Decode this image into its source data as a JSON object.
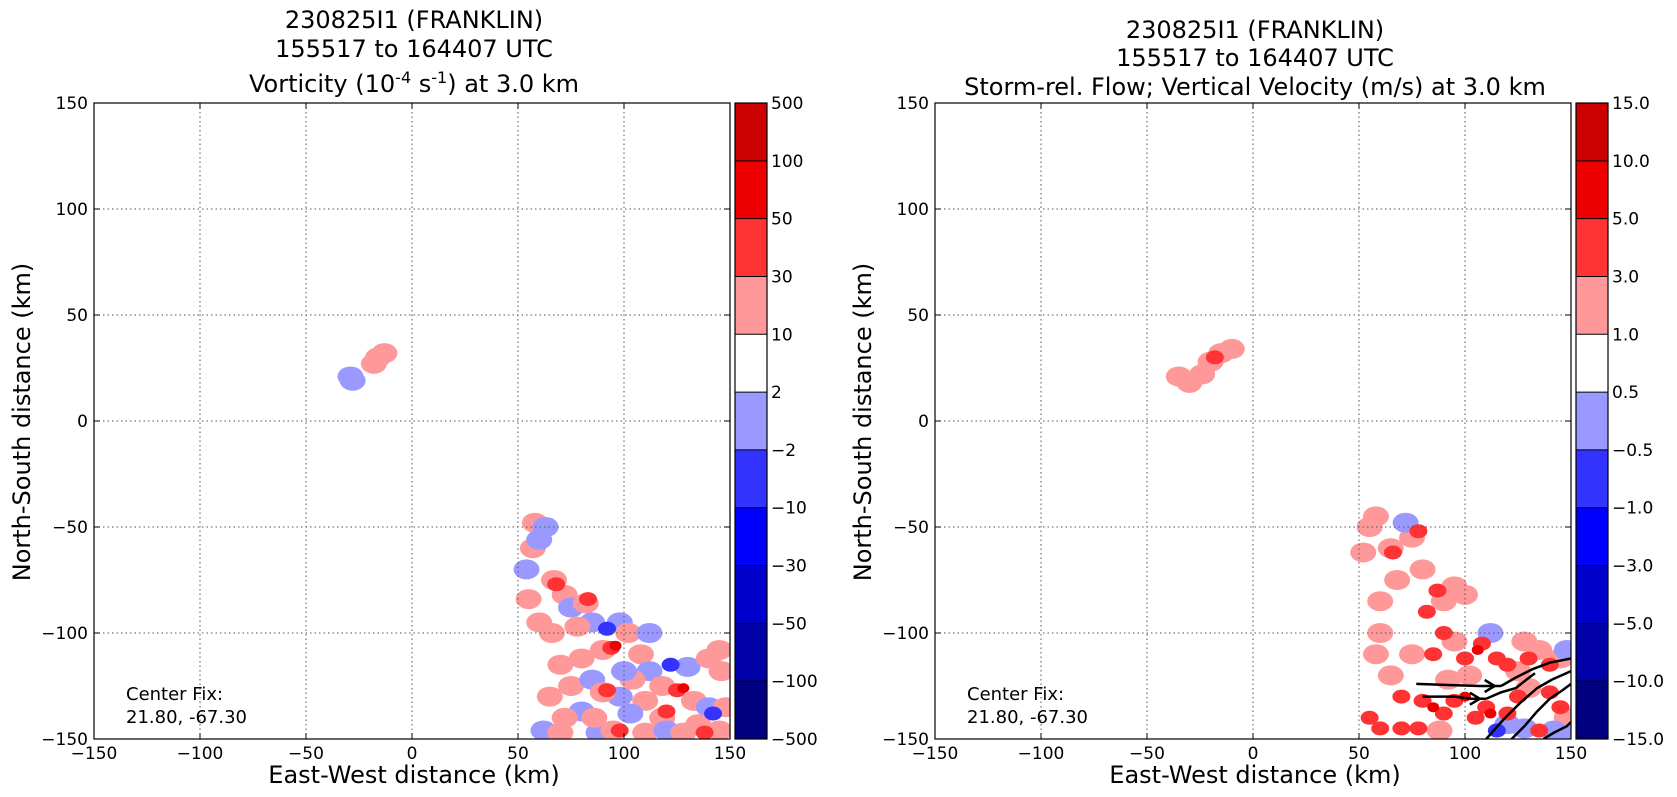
{
  "colors": {
    "blue": [
      "#000080",
      "#0000a8",
      "#0000cc",
      "#0000ff",
      "#3333ff",
      "#9999ff"
    ],
    "neutral": "#ffffff",
    "red": [
      "#ff9999",
      "#ff3333",
      "#ee0000",
      "#cc0000",
      "#aa0000",
      "#800000"
    ]
  },
  "chart_data": [
    {
      "type": "heatmap",
      "panel": "left",
      "title_lines": [
        "230825I1 (FRANKLIN)",
        "155517 to 164407 UTC"
      ],
      "title_line3_parts": [
        "Vorticity (10",
        "-4",
        " s",
        "-1",
        ") at 3.0 km"
      ],
      "xlabel": "East-West distance (km)",
      "ylabel": "North-South distance (km)",
      "xlim": [
        -150,
        150
      ],
      "ylim": [
        -150,
        150
      ],
      "x_ticks": [
        "−150",
        "−100",
        "−50",
        "0",
        "50",
        "100",
        "150"
      ],
      "y_ticks": [
        "150",
        "100",
        "50",
        "0",
        "−50",
        "−100",
        "−150"
      ],
      "grid": true,
      "annotation_lines": [
        "Center Fix:",
        "21.80, -67.30"
      ],
      "colorbar_levels": [
        "−500",
        "−100",
        "−50",
        "−30",
        "−10",
        "−2",
        "2",
        "10",
        "30",
        "50",
        "100",
        "500"
      ],
      "contour_regions": [
        {
          "x": -29,
          "y": 21,
          "level": -1
        },
        {
          "x": -28,
          "y": 19,
          "level": -1
        },
        {
          "x": -16,
          "y": 30,
          "level": 1
        },
        {
          "x": -13,
          "y": 32,
          "level": 1
        },
        {
          "x": -18,
          "y": 27,
          "level": 1
        },
        {
          "x": 58,
          "y": -48,
          "level": 1
        },
        {
          "x": 57,
          "y": -60,
          "level": 1
        },
        {
          "x": 60,
          "y": -56,
          "level": -1
        },
        {
          "x": 63,
          "y": -50,
          "level": -1
        },
        {
          "x": 54,
          "y": -70,
          "level": -1
        },
        {
          "x": 55,
          "y": -84,
          "level": 1
        },
        {
          "x": 67,
          "y": -75,
          "level": 1
        },
        {
          "x": 68,
          "y": -77,
          "level": 2
        },
        {
          "x": 72,
          "y": -82,
          "level": 1
        },
        {
          "x": 75,
          "y": -88,
          "level": -1
        },
        {
          "x": 82,
          "y": -86,
          "level": 1
        },
        {
          "x": 83,
          "y": -84,
          "level": 2
        },
        {
          "x": 85,
          "y": -95,
          "level": -1
        },
        {
          "x": 78,
          "y": -97,
          "level": 1
        },
        {
          "x": 92,
          "y": -98,
          "level": -2
        },
        {
          "x": 98,
          "y": -95,
          "level": -1
        },
        {
          "x": 102,
          "y": -100,
          "level": 1
        },
        {
          "x": 90,
          "y": -108,
          "level": 1
        },
        {
          "x": 94,
          "y": -107,
          "level": 2
        },
        {
          "x": 96,
          "y": -106,
          "level": 3
        },
        {
          "x": 80,
          "y": -112,
          "level": 1
        },
        {
          "x": 70,
          "y": -115,
          "level": 1
        },
        {
          "x": 75,
          "y": -125,
          "level": 1
        },
        {
          "x": 85,
          "y": -122,
          "level": -1
        },
        {
          "x": 108,
          "y": -110,
          "level": 1
        },
        {
          "x": 112,
          "y": -118,
          "level": -1
        },
        {
          "x": 122,
          "y": -115,
          "level": -2
        },
        {
          "x": 130,
          "y": -116,
          "level": -1
        },
        {
          "x": 140,
          "y": -112,
          "level": 1
        },
        {
          "x": 146,
          "y": -118,
          "level": 1
        },
        {
          "x": 145,
          "y": -108,
          "level": 1
        },
        {
          "x": 118,
          "y": -125,
          "level": 1
        },
        {
          "x": 125,
          "y": -127,
          "level": 2
        },
        {
          "x": 128,
          "y": -126,
          "level": 3
        },
        {
          "x": 133,
          "y": -132,
          "level": 1
        },
        {
          "x": 110,
          "y": -132,
          "level": 1
        },
        {
          "x": 98,
          "y": -130,
          "level": -1
        },
        {
          "x": 90,
          "y": -128,
          "level": 1
        },
        {
          "x": 92,
          "y": -127,
          "level": 2
        },
        {
          "x": 103,
          "y": -138,
          "level": -1
        },
        {
          "x": 80,
          "y": -137,
          "level": -1
        },
        {
          "x": 72,
          "y": -140,
          "level": 1
        },
        {
          "x": 118,
          "y": -140,
          "level": 1
        },
        {
          "x": 120,
          "y": -137,
          "level": 2
        },
        {
          "x": 140,
          "y": -135,
          "level": -1
        },
        {
          "x": 142,
          "y": -138,
          "level": -2
        },
        {
          "x": 135,
          "y": -143,
          "level": 1
        },
        {
          "x": 148,
          "y": -135,
          "level": 1
        },
        {
          "x": 62,
          "y": -146,
          "level": -1
        },
        {
          "x": 70,
          "y": -147,
          "level": 1
        },
        {
          "x": 88,
          "y": -147,
          "level": -1
        },
        {
          "x": 95,
          "y": -146,
          "level": 1
        },
        {
          "x": 98,
          "y": -146,
          "level": 2
        },
        {
          "x": 110,
          "y": -147,
          "level": 1
        },
        {
          "x": 120,
          "y": -146,
          "level": -1
        },
        {
          "x": 128,
          "y": -147,
          "level": 1
        },
        {
          "x": 138,
          "y": -147,
          "level": 2
        },
        {
          "x": 145,
          "y": -146,
          "level": 1
        },
        {
          "x": 104,
          "y": -122,
          "level": 1
        },
        {
          "x": 100,
          "y": -118,
          "level": -1
        },
        {
          "x": 65,
          "y": -130,
          "level": 1
        },
        {
          "x": 60,
          "y": -95,
          "level": 1
        },
        {
          "x": 66,
          "y": -100,
          "level": 1
        },
        {
          "x": 86,
          "y": -140,
          "level": 1
        },
        {
          "x": 112,
          "y": -100,
          "level": -1
        }
      ]
    },
    {
      "type": "heatmap",
      "panel": "right",
      "title_lines": [
        "230825I1 (FRANKLIN)",
        "155517 to 164407 UTC",
        "Storm-rel. Flow; Vertical Velocity (m/s) at 3.0 km"
      ],
      "xlabel": "East-West distance (km)",
      "ylabel": "North-South distance (km)",
      "xlim": [
        -150,
        150
      ],
      "ylim": [
        -150,
        150
      ],
      "x_ticks": [
        "−150",
        "−100",
        "−50",
        "0",
        "50",
        "100",
        "150"
      ],
      "y_ticks": [
        "150",
        "100",
        "50",
        "0",
        "−50",
        "−100",
        "−150"
      ],
      "grid": true,
      "annotation_lines": [
        "Center Fix:",
        "21.80, -67.30"
      ],
      "colorbar_levels": [
        "−15.0",
        "−10.0",
        "−5.0",
        "−3.0",
        "−1.0",
        "−0.5",
        "0.5",
        "1.0",
        "3.0",
        "5.0",
        "10.0",
        "15.0"
      ],
      "contour_regions": [
        {
          "x": -15,
          "y": 32,
          "level": 1
        },
        {
          "x": -20,
          "y": 28,
          "level": 1
        },
        {
          "x": -10,
          "y": 34,
          "level": 1
        },
        {
          "x": -24,
          "y": 22,
          "level": 1
        },
        {
          "x": -30,
          "y": 18,
          "level": 1
        },
        {
          "x": -35,
          "y": 21,
          "level": 1
        },
        {
          "x": -18,
          "y": 30,
          "level": 2
        },
        {
          "x": 52,
          "y": -62,
          "level": 1
        },
        {
          "x": 55,
          "y": -50,
          "level": 1
        },
        {
          "x": 58,
          "y": -45,
          "level": 1
        },
        {
          "x": 65,
          "y": -60,
          "level": 1
        },
        {
          "x": 66,
          "y": -62,
          "level": 2
        },
        {
          "x": 68,
          "y": -75,
          "level": 1
        },
        {
          "x": 60,
          "y": -85,
          "level": 1
        },
        {
          "x": 75,
          "y": -55,
          "level": 1
        },
        {
          "x": 78,
          "y": -52,
          "level": 2
        },
        {
          "x": 72,
          "y": -48,
          "level": -1
        },
        {
          "x": 80,
          "y": -70,
          "level": 1
        },
        {
          "x": 87,
          "y": -80,
          "level": 2
        },
        {
          "x": 90,
          "y": -85,
          "level": 1
        },
        {
          "x": 95,
          "y": -78,
          "level": 1
        },
        {
          "x": 82,
          "y": -90,
          "level": 2
        },
        {
          "x": 100,
          "y": -82,
          "level": 1
        },
        {
          "x": 90,
          "y": -100,
          "level": 2
        },
        {
          "x": 95,
          "y": -104,
          "level": 1
        },
        {
          "x": 85,
          "y": -110,
          "level": 2
        },
        {
          "x": 100,
          "y": -112,
          "level": 2
        },
        {
          "x": 108,
          "y": -105,
          "level": 2
        },
        {
          "x": 106,
          "y": -108,
          "level": 3
        },
        {
          "x": 115,
          "y": -112,
          "level": 2
        },
        {
          "x": 120,
          "y": -115,
          "level": 2
        },
        {
          "x": 125,
          "y": -118,
          "level": 1
        },
        {
          "x": 130,
          "y": -112,
          "level": 2
        },
        {
          "x": 135,
          "y": -108,
          "level": 1
        },
        {
          "x": 140,
          "y": -115,
          "level": 2
        },
        {
          "x": 145,
          "y": -112,
          "level": 1
        },
        {
          "x": 148,
          "y": -108,
          "level": -1
        },
        {
          "x": 128,
          "y": -104,
          "level": 1
        },
        {
          "x": 112,
          "y": -100,
          "level": -1
        },
        {
          "x": 75,
          "y": -110,
          "level": 1
        },
        {
          "x": 65,
          "y": -120,
          "level": 1
        },
        {
          "x": 70,
          "y": -130,
          "level": 2
        },
        {
          "x": 80,
          "y": -132,
          "level": 2
        },
        {
          "x": 85,
          "y": -135,
          "level": 3
        },
        {
          "x": 90,
          "y": -138,
          "level": 2
        },
        {
          "x": 95,
          "y": -132,
          "level": 2
        },
        {
          "x": 100,
          "y": -130,
          "level": 3
        },
        {
          "x": 105,
          "y": -140,
          "level": 2
        },
        {
          "x": 110,
          "y": -135,
          "level": 2
        },
        {
          "x": 112,
          "y": -138,
          "level": 3
        },
        {
          "x": 60,
          "y": -145,
          "level": 2
        },
        {
          "x": 70,
          "y": -145,
          "level": 2
        },
        {
          "x": 55,
          "y": -140,
          "level": 2
        },
        {
          "x": 78,
          "y": -145,
          "level": 2
        },
        {
          "x": 88,
          "y": -146,
          "level": 1
        },
        {
          "x": 120,
          "y": -138,
          "level": 2
        },
        {
          "x": 125,
          "y": -130,
          "level": 2
        },
        {
          "x": 130,
          "y": -126,
          "level": 1
        },
        {
          "x": 140,
          "y": -128,
          "level": 2
        },
        {
          "x": 145,
          "y": -135,
          "level": 2
        },
        {
          "x": 148,
          "y": -140,
          "level": 1
        },
        {
          "x": 115,
          "y": -146,
          "level": -2
        },
        {
          "x": 120,
          "y": -143,
          "level": -1
        },
        {
          "x": 128,
          "y": -145,
          "level": -1
        },
        {
          "x": 135,
          "y": -146,
          "level": 2
        },
        {
          "x": 142,
          "y": -146,
          "level": -1
        },
        {
          "x": 148,
          "y": -148,
          "level": -1
        },
        {
          "x": 92,
          "y": -122,
          "level": 1
        },
        {
          "x": 102,
          "y": -120,
          "level": 1
        },
        {
          "x": 60,
          "y": -100,
          "level": 1
        },
        {
          "x": 58,
          "y": -110,
          "level": 1
        }
      ],
      "streamlines": [
        [
          [
            77,
            -124
          ],
          [
            92,
            -124.5
          ],
          [
            107,
            -125
          ],
          [
            117,
            -125
          ]
        ],
        [
          [
            80,
            -130
          ],
          [
            95,
            -130
          ],
          [
            103,
            -131
          ],
          [
            110,
            -131
          ]
        ],
        [
          [
            117,
            -125
          ],
          [
            124,
            -121
          ],
          [
            132,
            -117
          ],
          [
            140,
            -114
          ],
          [
            150,
            -112
          ]
        ],
        [
          [
            110,
            -131
          ],
          [
            117,
            -128
          ],
          [
            124,
            -126
          ],
          [
            129,
            -122
          ],
          [
            133,
            -119
          ]
        ],
        [
          [
            110,
            -150
          ],
          [
            118,
            -141
          ],
          [
            126,
            -133
          ],
          [
            134,
            -126
          ],
          [
            141,
            -122
          ],
          [
            150,
            -118
          ]
        ],
        [
          [
            122,
            -150
          ],
          [
            128,
            -144
          ],
          [
            134,
            -137
          ],
          [
            140,
            -131
          ],
          [
            146,
            -127
          ],
          [
            150,
            -124
          ]
        ],
        [
          [
            137,
            -150
          ],
          [
            142,
            -147
          ],
          [
            148,
            -144
          ],
          [
            150,
            -142
          ]
        ]
      ],
      "arrows": [
        {
          "x": 114,
          "y": -125,
          "dir": "right"
        },
        {
          "x": 107,
          "y": -131,
          "dir": "right"
        }
      ]
    }
  ]
}
